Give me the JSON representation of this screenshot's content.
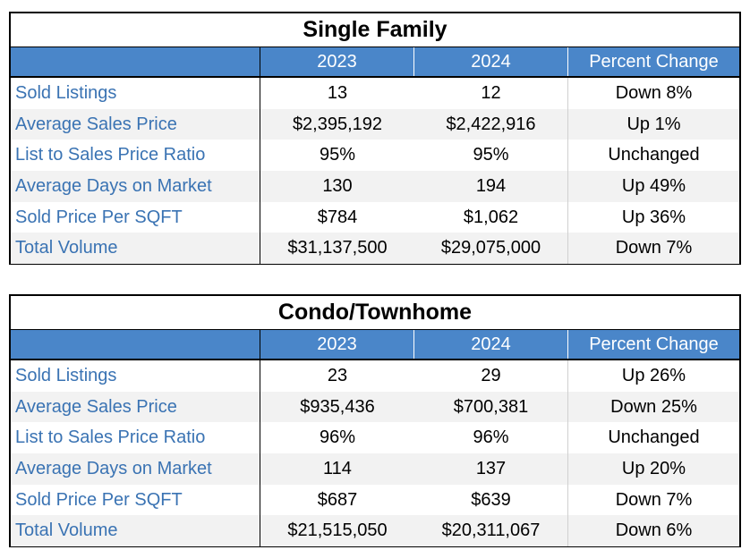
{
  "tables": [
    {
      "title": "Single Family",
      "headers": [
        "",
        "2023",
        "2024",
        "Percent Change"
      ],
      "rows": [
        [
          "Sold Listings",
          "13",
          "12",
          "Down 8%"
        ],
        [
          "Average Sales Price",
          "$2,395,192",
          "$2,422,916",
          "Up 1%"
        ],
        [
          "List to Sales Price Ratio",
          "95%",
          "95%",
          "Unchanged"
        ],
        [
          "Average Days on Market",
          "130",
          "194",
          "Up 49%"
        ],
        [
          "Sold Price Per SQFT",
          "$784",
          "$1,062",
          "Up 36%"
        ],
        [
          "Total Volume",
          "$31,137,500",
          "$29,075,000",
          "Down 7%"
        ]
      ]
    },
    {
      "title": "Condo/Townhome",
      "headers": [
        "",
        "2023",
        "2024",
        "Percent Change"
      ],
      "rows": [
        [
          "Sold Listings",
          "23",
          "29",
          "Up 26%"
        ],
        [
          "Average Sales Price",
          "$935,436",
          "$700,381",
          "Down 25%"
        ],
        [
          "List to Sales Price Ratio",
          "96%",
          "96%",
          "Unchanged"
        ],
        [
          "Average Days on Market",
          "114",
          "137",
          "Up 20%"
        ],
        [
          "Sold Price Per SQFT",
          "$687",
          "$639",
          "Down 7%"
        ],
        [
          "Total Volume",
          "$21,515,050",
          "$20,311,067",
          "Down 6%"
        ]
      ]
    }
  ],
  "colors": {
    "header_bg": "#4a86c9",
    "label_text": "#3a73b3",
    "alt_row_bg": "#f2f2f2"
  }
}
